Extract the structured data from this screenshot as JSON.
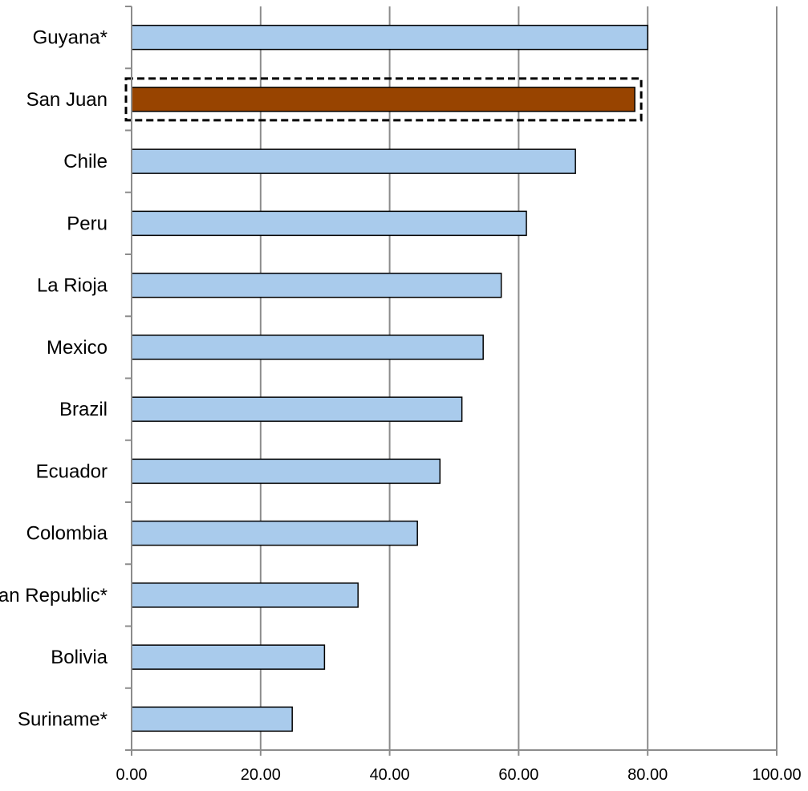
{
  "chart_data": {
    "type": "bar",
    "orientation": "horizontal",
    "categories": [
      "Guyana*",
      "San Juan",
      "Chile",
      "Peru",
      "La Rioja",
      "Mexico",
      "Brazil",
      "Ecuador",
      "Colombia",
      "Dominican Republic*",
      "Bolivia",
      "Suriname*"
    ],
    "values": [
      80.0,
      78.0,
      68.8,
      61.2,
      57.3,
      54.5,
      51.2,
      47.8,
      44.3,
      35.1,
      29.9,
      24.9
    ],
    "highlight": "San Juan",
    "xlim": [
      0,
      100
    ],
    "xticks": [
      "0.00",
      "20.00",
      "40.00",
      "60.00",
      "80.00",
      "100.00"
    ],
    "grid": "vertical",
    "colors": {
      "bar": "#a9cbec",
      "highlight": "#984400",
      "bar_border": "#000000",
      "grid": "#8c8c8c",
      "highlight_box": "#000000"
    }
  }
}
